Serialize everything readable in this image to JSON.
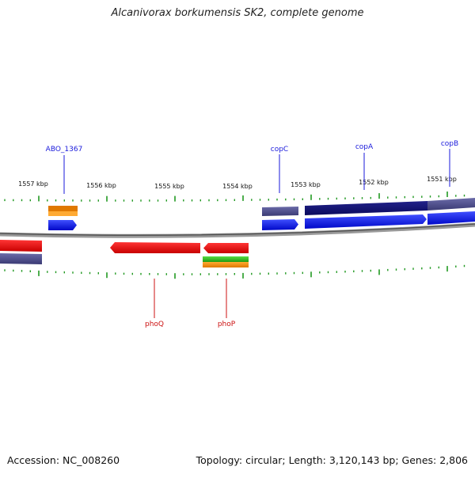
{
  "title": "Alcanivorax borkumensis SK2, complete genome",
  "footer": {
    "accession": "Accession: NC_008260",
    "summary": "Topology: circular; Length: 3,120,143 bp; Genes: 2,806"
  },
  "scale_labels": [
    "1557 kbp",
    "1556 kbp",
    "1555 kbp",
    "1554 kbp",
    "1553 kbp",
    "1552 kbp",
    "1551 kbp"
  ],
  "gene_labels": {
    "forward": [
      "ABO_1367",
      "copC",
      "copA",
      "copB"
    ],
    "reverse": [
      "phoQ",
      "phoP"
    ]
  },
  "colors": {
    "forward_label": "#1a1adb",
    "reverse_label": "#cc1111",
    "cds_forward": "#0a14ee",
    "cds_reverse": "#ee1111",
    "gene_dark": "#12127a",
    "gene_slate": "#4a4a8c",
    "orange": "#f08c10",
    "green": "#33bb22",
    "ticks": "#229922",
    "backbone": "#777777"
  }
}
